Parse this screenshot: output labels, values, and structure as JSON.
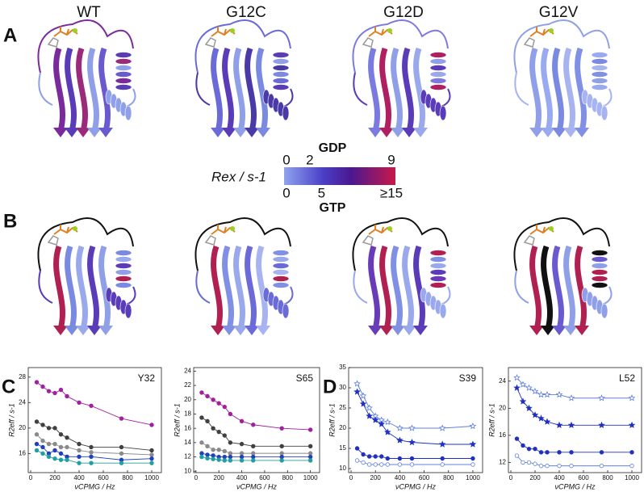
{
  "panel_labels": [
    "A",
    "B",
    "C",
    "D"
  ],
  "variants": [
    "WT",
    "G12C",
    "G12D",
    "G12V"
  ],
  "colorbar": {
    "gdp_label": "GDP",
    "gdp_range": [
      0,
      9
    ],
    "gdp_ticks": [
      0,
      2,
      9
    ],
    "label": "Rex / s-1",
    "gtp_label": "GTP",
    "gtp_range": [
      0,
      15
    ],
    "gtp_ticks": [
      0,
      5,
      {
        "value": 15,
        "label": "≥15"
      }
    ]
  },
  "chart_data": [
    {
      "type": "line",
      "annotation": "Y32",
      "xlabel": "νCPMG / Hz",
      "ylabel": "R2eff / s-1",
      "x": [
        50,
        100,
        150,
        200,
        250,
        300,
        400,
        500,
        750,
        1000
      ],
      "xlim": [
        -20,
        1080
      ],
      "xticks": [
        0,
        200,
        400,
        600,
        800,
        1000
      ],
      "ylim": [
        13,
        29.5
      ],
      "yticks": [
        16,
        20,
        24,
        28
      ],
      "series": [
        {
          "color": "#a020a0",
          "marker": "circle",
          "filled": true,
          "values": [
            27.2,
            26.5,
            25.8,
            25.5,
            26,
            25,
            24,
            23.5,
            21.5,
            20.5
          ]
        },
        {
          "color": "#404040",
          "marker": "circle",
          "filled": true,
          "values": [
            21,
            20.5,
            20,
            20,
            19,
            18.5,
            17.5,
            17,
            17,
            16.5
          ]
        },
        {
          "color": "#8a8a8a",
          "marker": "circle",
          "filled": true,
          "values": [
            19,
            18,
            17.5,
            17.5,
            17,
            17,
            16.5,
            16.2,
            16,
            15.8
          ]
        },
        {
          "color": "#2040c0",
          "marker": "circle",
          "filled": true,
          "values": [
            17.5,
            17,
            16,
            16.5,
            16,
            15.5,
            15.5,
            15.5,
            15,
            15.2
          ]
        },
        {
          "color": "#20a0a0",
          "marker": "circle",
          "filled": true,
          "values": [
            16.5,
            16,
            15.5,
            15.2,
            15,
            15,
            14.5,
            14.5,
            14.5,
            14.5
          ]
        }
      ]
    },
    {
      "type": "line",
      "annotation": "S65",
      "xlabel": "νCPMG / Hz",
      "ylabel": "R2eff / s-1",
      "x": [
        50,
        100,
        150,
        200,
        250,
        300,
        400,
        500,
        750,
        1000
      ],
      "xlim": [
        -20,
        1080
      ],
      "xticks": [
        0,
        200,
        400,
        600,
        800,
        1000
      ],
      "ylim": [
        9.8,
        24.5
      ],
      "yticks": [
        10,
        12,
        14,
        16,
        18,
        20,
        22,
        24
      ],
      "series": [
        {
          "color": "#a020a0",
          "marker": "circle",
          "filled": true,
          "values": [
            21,
            20.5,
            20,
            19.5,
            19,
            18,
            17,
            16.5,
            16,
            15.8
          ]
        },
        {
          "color": "#404040",
          "marker": "circle",
          "filled": true,
          "values": [
            17.5,
            17,
            16,
            15.5,
            15,
            14,
            13.8,
            13.5,
            13.5,
            13.5
          ]
        },
        {
          "color": "#8a8a8a",
          "marker": "circle",
          "filled": true,
          "values": [
            14,
            13.5,
            13,
            13,
            12.8,
            12.5,
            12.5,
            12.5,
            12.5,
            12.5
          ]
        },
        {
          "color": "#2040c0",
          "marker": "circle",
          "filled": true,
          "values": [
            12.5,
            12.3,
            12.2,
            12,
            12,
            12,
            12,
            12,
            12,
            12
          ]
        },
        {
          "color": "#20a0a0",
          "marker": "circle",
          "filled": true,
          "values": [
            12,
            11.8,
            11.7,
            11.6,
            11.5,
            11.5,
            11.5,
            11.5,
            11.5,
            11.5
          ]
        }
      ]
    },
    {
      "type": "line",
      "annotation": "S39",
      "xlabel": "νCPMG / Hz",
      "ylabel": "R2eff / s-1",
      "x": [
        50,
        100,
        150,
        200,
        250,
        300,
        400,
        500,
        750,
        1000
      ],
      "xlim": [
        -20,
        1080
      ],
      "xticks": [
        0,
        200,
        400,
        600,
        800,
        1000
      ],
      "ylim": [
        9,
        35
      ],
      "yticks": [
        10,
        15,
        20,
        25,
        30,
        35
      ],
      "series": [
        {
          "color": "#6080e0",
          "marker": "star",
          "filled": false,
          "values": [
            31,
            28,
            25,
            23,
            22,
            21.5,
            20,
            20,
            20,
            20.5
          ]
        },
        {
          "color": "#2030c0",
          "marker": "star",
          "filled": true,
          "values": [
            29,
            26,
            23,
            22,
            21,
            19,
            17,
            16.5,
            16,
            16
          ]
        },
        {
          "color": "#2030c0",
          "marker": "circle",
          "filled": true,
          "values": [
            15,
            13.5,
            13,
            13,
            13,
            12.5,
            12.5,
            12.5,
            12.5,
            12.5
          ]
        },
        {
          "color": "#6080e0",
          "marker": "circle",
          "filled": false,
          "values": [
            12,
            11.5,
            11,
            11,
            11,
            11,
            11,
            11,
            11,
            11
          ]
        }
      ]
    },
    {
      "type": "line",
      "annotation": "L52",
      "xlabel": "νCPMG / Hz",
      "ylabel": "R2eff / s-1",
      "x": [
        50,
        100,
        150,
        200,
        250,
        300,
        400,
        500,
        750,
        1000
      ],
      "xlim": [
        -20,
        1080
      ],
      "xticks": [
        0,
        200,
        400,
        600,
        800,
        1000
      ],
      "ylim": [
        10.5,
        26
      ],
      "yticks": [
        12,
        16,
        20,
        24
      ],
      "series": [
        {
          "color": "#6080e0",
          "marker": "star",
          "filled": false,
          "values": [
            24.5,
            23.5,
            23,
            22.5,
            22,
            22,
            22,
            21.5,
            21.5,
            21.5
          ]
        },
        {
          "color": "#2030c0",
          "marker": "star",
          "filled": true,
          "values": [
            23,
            21,
            20,
            19,
            18.5,
            18,
            17.5,
            17.5,
            17.5,
            17.5
          ]
        },
        {
          "color": "#2030c0",
          "marker": "circle",
          "filled": true,
          "values": [
            15.5,
            14.5,
            14,
            14,
            13.5,
            13.5,
            13.5,
            13.5,
            13.5,
            13.5
          ]
        },
        {
          "color": "#6080e0",
          "marker": "circle",
          "filled": false,
          "values": [
            13,
            12,
            12,
            11.8,
            11.5,
            11.5,
            11.5,
            11.5,
            11.5,
            11.5
          ]
        }
      ]
    }
  ]
}
